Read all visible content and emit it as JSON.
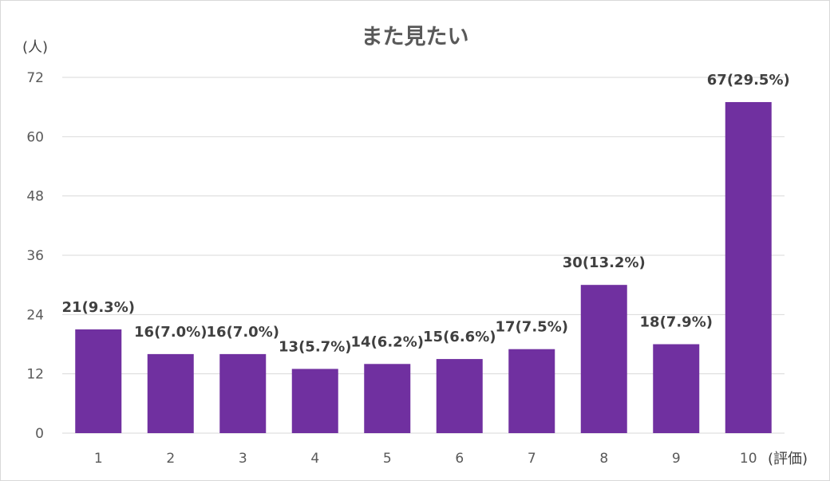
{
  "chart_data": {
    "type": "bar",
    "title": "また見たい",
    "ylabel": "(人)",
    "xlabel": "(評価)",
    "categories": [
      "1",
      "2",
      "3",
      "4",
      "5",
      "6",
      "7",
      "8",
      "9",
      "10"
    ],
    "values": [
      21,
      16,
      16,
      13,
      14,
      15,
      17,
      30,
      18,
      67
    ],
    "data_labels": [
      "21(9.3%)",
      "16(7.0%)",
      "16(7.0%)",
      "13(5.7%)",
      "14(6.2%)",
      "15(6.6%)",
      "17(7.5%)",
      "30(13.2%)",
      "18(7.9%)",
      "67(29.5%)"
    ],
    "yticks": [
      0,
      12,
      24,
      36,
      48,
      60,
      72
    ],
    "ylim": [
      0,
      72
    ],
    "grid": true,
    "legend": "none",
    "bar_color": "#7030a0"
  }
}
